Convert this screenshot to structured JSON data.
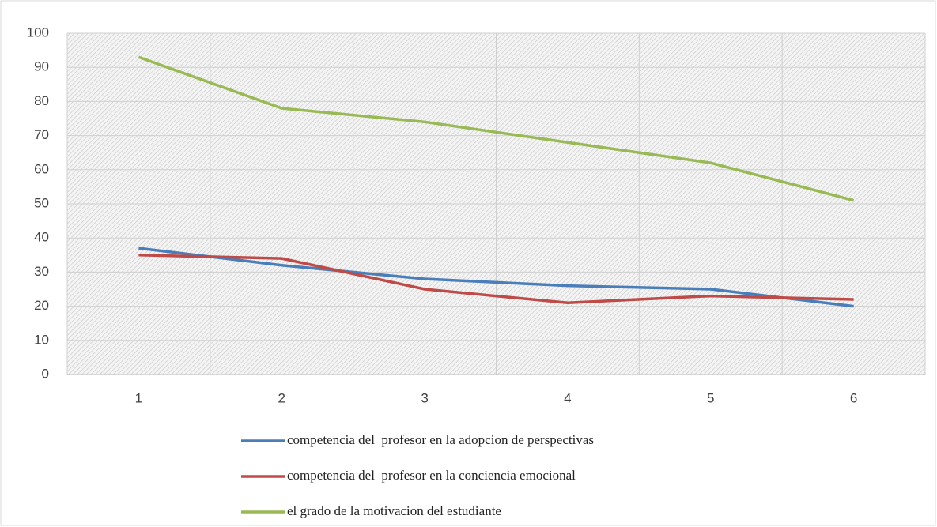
{
  "chart_data": {
    "type": "line",
    "categories": [
      "1",
      "2",
      "3",
      "4",
      "5",
      "6"
    ],
    "series": [
      {
        "name": "competencia del  profesor en la adopcion de perspectivas",
        "color": "#4a7ebb",
        "values": [
          37,
          32,
          28,
          26,
          25,
          20
        ]
      },
      {
        "name": "competencia del  profesor en la conciencia emocional",
        "color": "#be4b48",
        "values": [
          35,
          34,
          25,
          21,
          23,
          22
        ]
      },
      {
        "name": "el grado de la motivacion del estudiante",
        "color": "#98b954",
        "values": [
          93,
          78,
          74,
          68,
          62,
          51
        ]
      }
    ],
    "ylim": [
      0,
      100
    ],
    "yticks": [
      0,
      10,
      20,
      30,
      40,
      50,
      60,
      70,
      80,
      90,
      100
    ],
    "grid": true,
    "legend": "bottom"
  }
}
